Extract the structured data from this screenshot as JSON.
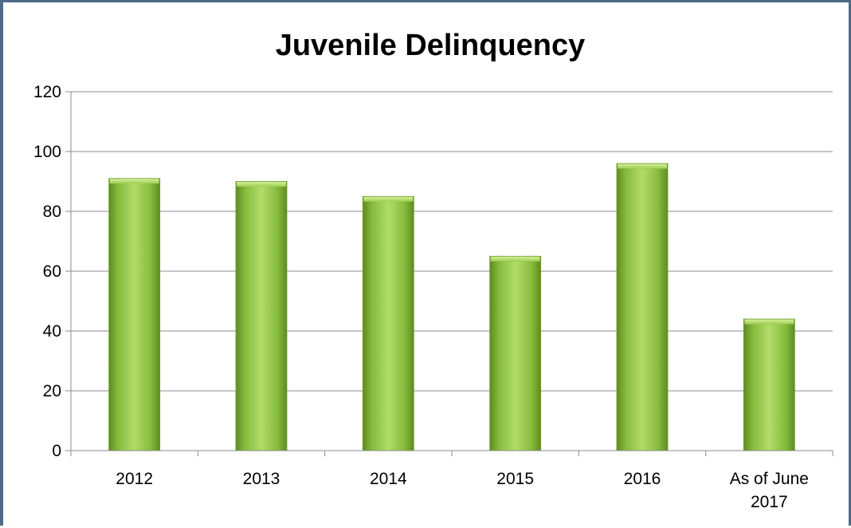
{
  "chart_data": {
    "type": "bar",
    "title": "Juvenile Delinquency",
    "categories": [
      "2012",
      "2013",
      "2014",
      "2015",
      "2016",
      "As of June 2017"
    ],
    "category_lines": [
      [
        "2012"
      ],
      [
        "2013"
      ],
      [
        "2014"
      ],
      [
        "2015"
      ],
      [
        "2016"
      ],
      [
        "As of June",
        "2017"
      ]
    ],
    "values": [
      91,
      90,
      85,
      65,
      96,
      44
    ],
    "ylim": [
      0,
      120
    ],
    "yticks": [
      "0",
      "20",
      "40",
      "60",
      "80",
      "100",
      "120"
    ],
    "xlabel": "",
    "ylabel": "",
    "grid": true,
    "bar_color": "#8cbf3f"
  }
}
